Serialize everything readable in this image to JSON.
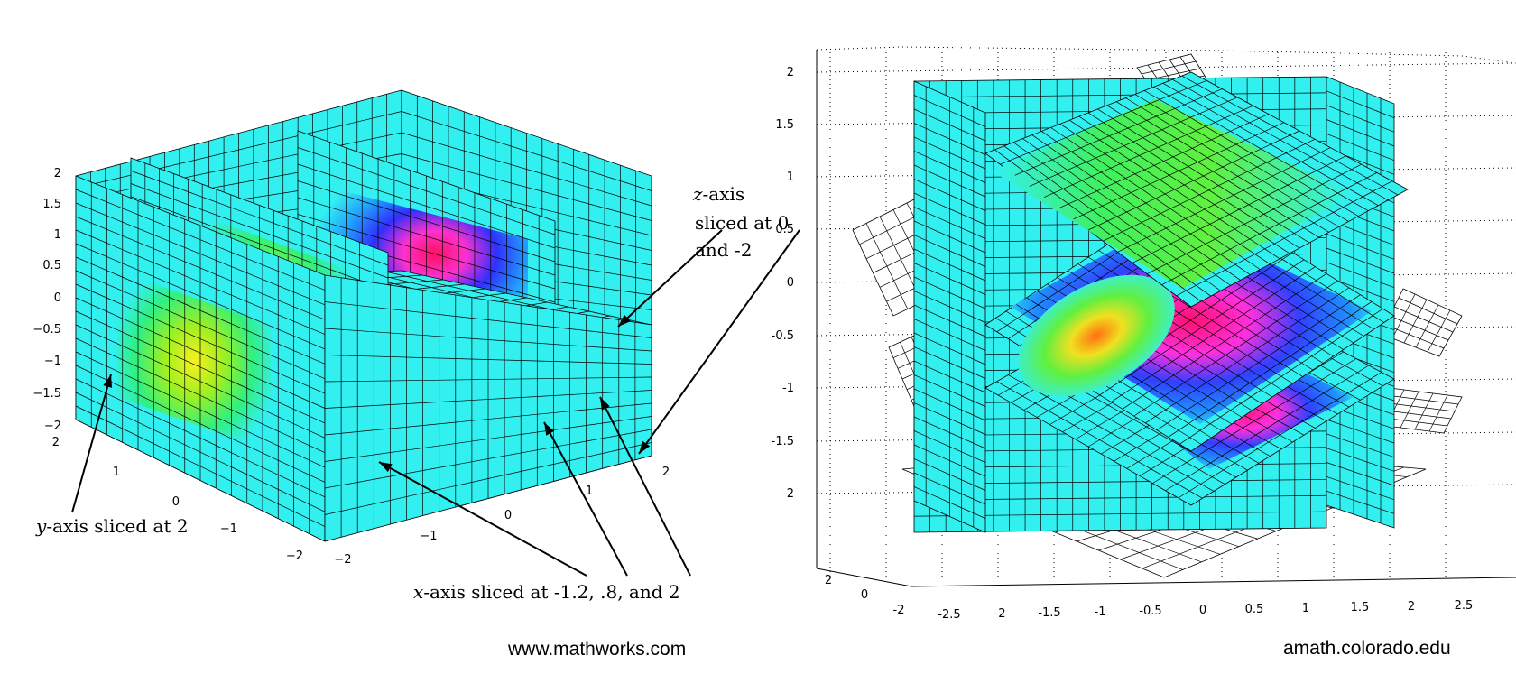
{
  "chart_data": [
    {
      "type": "slice",
      "title": "",
      "axes": {
        "z_ticks": [
          "2",
          "1.5",
          "1",
          "0.5",
          "0",
          "−0.5",
          "−1",
          "−1.5",
          "−2"
        ],
        "y_ticks": [
          "2",
          "1",
          "0",
          "−1",
          "−2"
        ],
        "x_ticks": [
          "−2",
          "−1",
          "0",
          "1",
          "2"
        ],
        "range": [
          -2,
          2
        ]
      },
      "slices": {
        "x": [
          -1.2,
          0.8,
          2
        ],
        "y": [
          2
        ],
        "z": [
          0,
          -2
        ]
      },
      "annotations": [
        {
          "var": "z",
          "text_lines": [
            "-axis",
            "sliced at 0",
            "and -2"
          ]
        },
        {
          "var": "y",
          "text": "-axis sliced at 2"
        },
        {
          "var": "x",
          "text": "-axis sliced at -1.2, .8, and 2"
        }
      ],
      "colors": {
        "base": "#33f0f0",
        "peak_pos": "#f0e020",
        "peak_neg": "#ff2080",
        "mid_neg": "#2050ff"
      },
      "credit": "www.mathworks.com"
    },
    {
      "type": "slice",
      "title": "",
      "axes": {
        "z_ticks": [
          "2",
          "1.5",
          "1",
          "0.5",
          "0",
          "-0.5",
          "-1",
          "-1.5",
          "-2"
        ],
        "y_ticks": [
          "2",
          "0",
          "-2"
        ],
        "x_ticks": [
          "-2.5",
          "-2",
          "-1.5",
          "-1",
          "-0.5",
          "0",
          "0.5",
          "1",
          "1.5",
          "2",
          "2.5"
        ]
      },
      "grid": true,
      "colors": {
        "base": "#33f0f0",
        "peak_pos": "#ff8c10",
        "peak_neg": "#ff2080",
        "mid_neg": "#2050ff"
      },
      "credit": "amath.colorado.edu"
    }
  ]
}
